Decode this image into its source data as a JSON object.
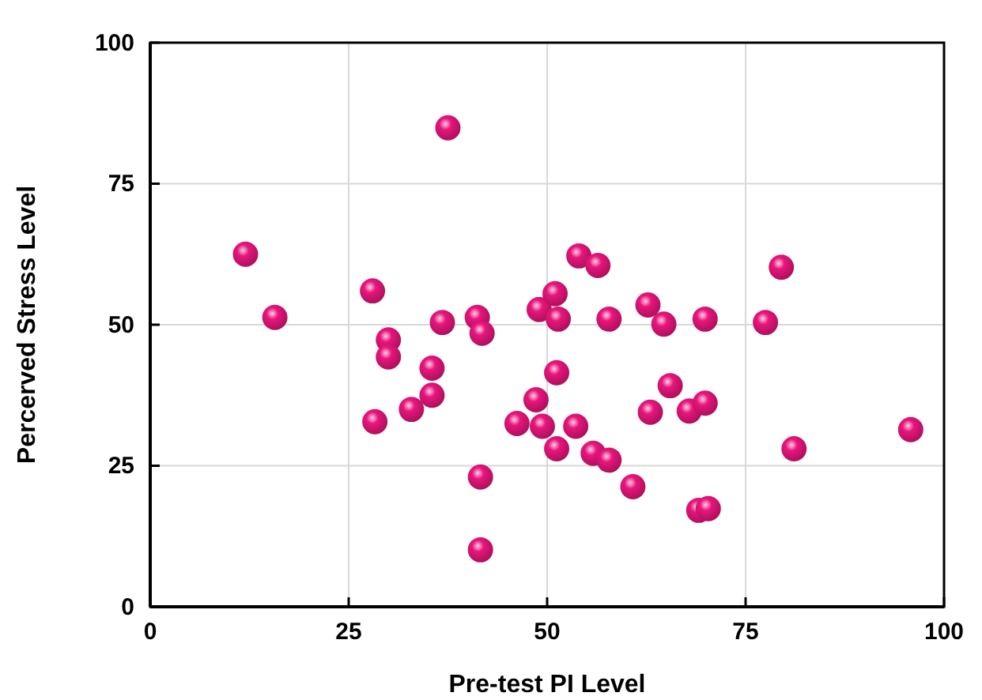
{
  "chart_data": {
    "type": "scatter",
    "xlabel": "Pre-test PI Level",
    "ylabel": "Percerved Stress Level",
    "xlim": [
      0,
      100
    ],
    "ylim": [
      0,
      100
    ],
    "xticks": [
      0,
      25,
      50,
      75,
      100
    ],
    "yticks": [
      0,
      25,
      50,
      75,
      100
    ],
    "grid": true,
    "marker": "circle",
    "series": [
      {
        "color": "#e8157c",
        "x": [
          12,
          15.7,
          28,
          28.3,
          30,
          30,
          32.9,
          35.5,
          35.5,
          36.8,
          37.5,
          41.2,
          41.8,
          41.6,
          41.6,
          46.2,
          48.6,
          49,
          49.4,
          51,
          51.4,
          51.2,
          51.2,
          54,
          56.4,
          53.6,
          55.8,
          57.8,
          57.8,
          60.8,
          62.7,
          63,
          64.7,
          65.5,
          67.9,
          69.9,
          69.1,
          70.3,
          69.9,
          77.5,
          79.5,
          81.1,
          95.8
        ],
        "values": [
          62.5,
          51.3,
          56,
          32.8,
          47.3,
          44.3,
          35,
          37.5,
          42.3,
          50.4,
          84.9,
          51.3,
          48.5,
          23,
          10.1,
          32.5,
          36.7,
          52.7,
          32,
          55.5,
          51,
          41.5,
          28,
          62.2,
          60.5,
          32,
          27.2,
          26,
          51,
          21.3,
          53.5,
          34.5,
          50.1,
          39.2,
          34.7,
          36.1,
          17.1,
          17.4,
          51,
          50.4,
          60.2,
          28,
          31.4
        ]
      }
    ]
  }
}
